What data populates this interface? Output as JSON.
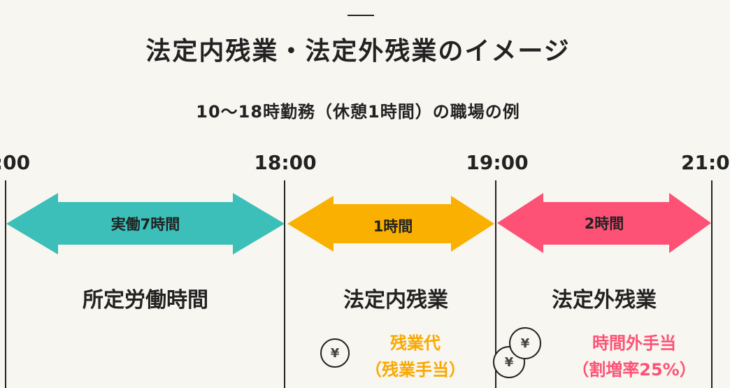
{
  "title": "法定内残業・法定外残業のイメージ",
  "subtitle": "10〜18時勤務（休憩1時間）の職場の例",
  "times": [
    ":00",
    "18:00",
    "19:00",
    "21:0"
  ],
  "arrows": [
    {
      "label": "実働7時間",
      "color": "#3bbfb8"
    },
    {
      "label": "1時間",
      "color": "#f9b000"
    },
    {
      "label": "2時間",
      "color": "#fd5275"
    }
  ],
  "categories": [
    "所定労働時間",
    "法定内残業",
    "法定外残業"
  ],
  "pay": {
    "inner": {
      "line1": "残業代",
      "line2": "（残業手当）",
      "color": "#f9a800"
    },
    "outer": {
      "line1": "時間外手当",
      "line2": "（割増率25%）",
      "color": "#fd5275"
    },
    "coin_symbol": "¥"
  }
}
